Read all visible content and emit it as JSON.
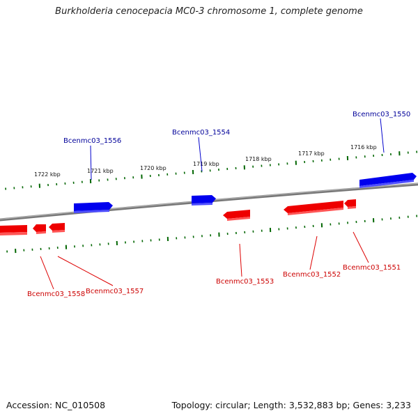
{
  "title": "Burkholderia cenocepacia MC0-3 chromosome 1, complete genome",
  "footer": {
    "accession": "Accession: NC_010508",
    "summary": "Topology: circular; Length: 3,532,883 bp; Genes: 3,233"
  },
  "colors": {
    "forward_strand": "#0000ee",
    "reverse_strand": "#ee0000",
    "forward_label": "#000099",
    "reverse_label": "#cc0000",
    "tick": "#006600",
    "backbone": "#808080"
  },
  "scale_labels": [
    "1722 kbp",
    "1721 kbp",
    "1720 kbp",
    "1719 kbp",
    "1718 kbp",
    "1717 kbp",
    "1716 kbp"
  ],
  "forward_genes": [
    {
      "label": "Bcenmc03_1556"
    },
    {
      "label": "Bcenmc03_1554"
    },
    {
      "label": "Bcenmc03_1550"
    }
  ],
  "reverse_genes": [
    {
      "label": "Bcenmc03_1558"
    },
    {
      "label": "Bcenmc03_1557"
    },
    {
      "label": "Bcenmc03_1553"
    },
    {
      "label": "Bcenmc03_1552"
    },
    {
      "label": "Bcenmc03_1551"
    }
  ]
}
